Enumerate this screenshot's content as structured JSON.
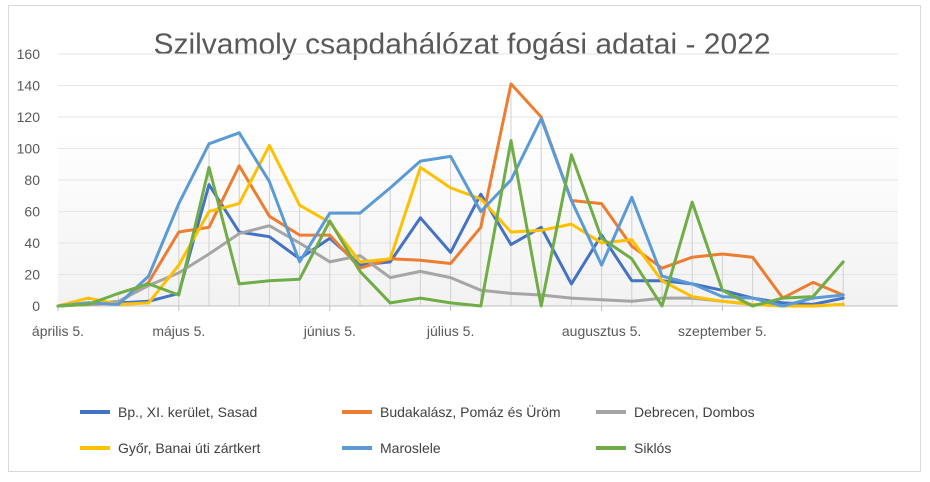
{
  "chart_data": {
    "type": "line",
    "title": "Szilvamoly csapdahálózat fogási adatai - 2022",
    "xlabel": "",
    "ylabel": "",
    "ylim": [
      0,
      160
    ],
    "yticks": [
      "0",
      "20",
      "40",
      "60",
      "80",
      "100",
      "120",
      "140",
      "160"
    ],
    "x_tick_labels": [
      "április 5.",
      "május 5.",
      "június 5.",
      "július 5.",
      "augusztus 5.",
      "szeptember 5."
    ],
    "x": [
      "04-05",
      "04-12",
      "04-19",
      "04-26",
      "05-03",
      "05-10",
      "05-17",
      "05-24",
      "05-31",
      "06-07",
      "06-14",
      "06-21",
      "06-28",
      "07-05",
      "07-12",
      "07-19",
      "07-26",
      "08-02",
      "08-09",
      "08-16",
      "08-23",
      "08-30",
      "09-06",
      "09-13",
      "09-20",
      "09-27",
      "10-04"
    ],
    "grid": "horizontal",
    "legend_position": "bottom",
    "series": [
      {
        "name": "Bp., XI. kerület, Sasad",
        "color": "#4472c4",
        "values": [
          0,
          2,
          2,
          3,
          8,
          77,
          47,
          44,
          30,
          43,
          26,
          28,
          56,
          34,
          71,
          39,
          50,
          14,
          45,
          16,
          16,
          14,
          10,
          5,
          2,
          1,
          5
        ]
      },
      {
        "name": "Budakalász, Pomáz és Üröm",
        "color": "#ed7d31",
        "values": [
          0,
          1,
          2,
          15,
          47,
          50,
          89,
          57,
          45,
          45,
          24,
          30,
          29,
          27,
          50,
          141,
          120,
          67,
          65,
          38,
          24,
          31,
          33,
          31,
          5,
          15,
          7
        ]
      },
      {
        "name": "Debrecen, Dombos",
        "color": "#a5a5a5",
        "values": [
          0,
          1,
          3,
          13,
          21,
          33,
          46,
          51,
          40,
          28,
          32,
          18,
          22,
          18,
          10,
          8,
          7,
          5,
          4,
          3,
          5,
          5,
          3,
          1,
          0,
          0,
          1
        ]
      },
      {
        "name": "Győr, Banai úti zártkert",
        "color": "#ffc000",
        "values": [
          0,
          5,
          1,
          2,
          26,
          60,
          65,
          102,
          64,
          53,
          28,
          30,
          88,
          75,
          68,
          47,
          48,
          52,
          40,
          42,
          16,
          6,
          3,
          1,
          0,
          0,
          1
        ]
      },
      {
        "name": "Maroslele",
        "color": "#5b9bd5",
        "values": [
          0,
          2,
          1,
          19,
          65,
          103,
          110,
          79,
          28,
          59,
          59,
          75,
          92,
          95,
          60,
          80,
          119,
          67,
          26,
          69,
          19,
          14,
          6,
          5,
          0,
          5,
          7
        ]
      },
      {
        "name": "Siklós",
        "color": "#70ad47",
        "values": [
          0,
          1,
          8,
          14,
          7,
          88,
          14,
          16,
          17,
          54,
          22,
          2,
          5,
          2,
          0,
          105,
          0,
          96,
          43,
          30,
          0,
          66,
          10,
          0,
          5,
          6,
          28
        ]
      }
    ]
  }
}
